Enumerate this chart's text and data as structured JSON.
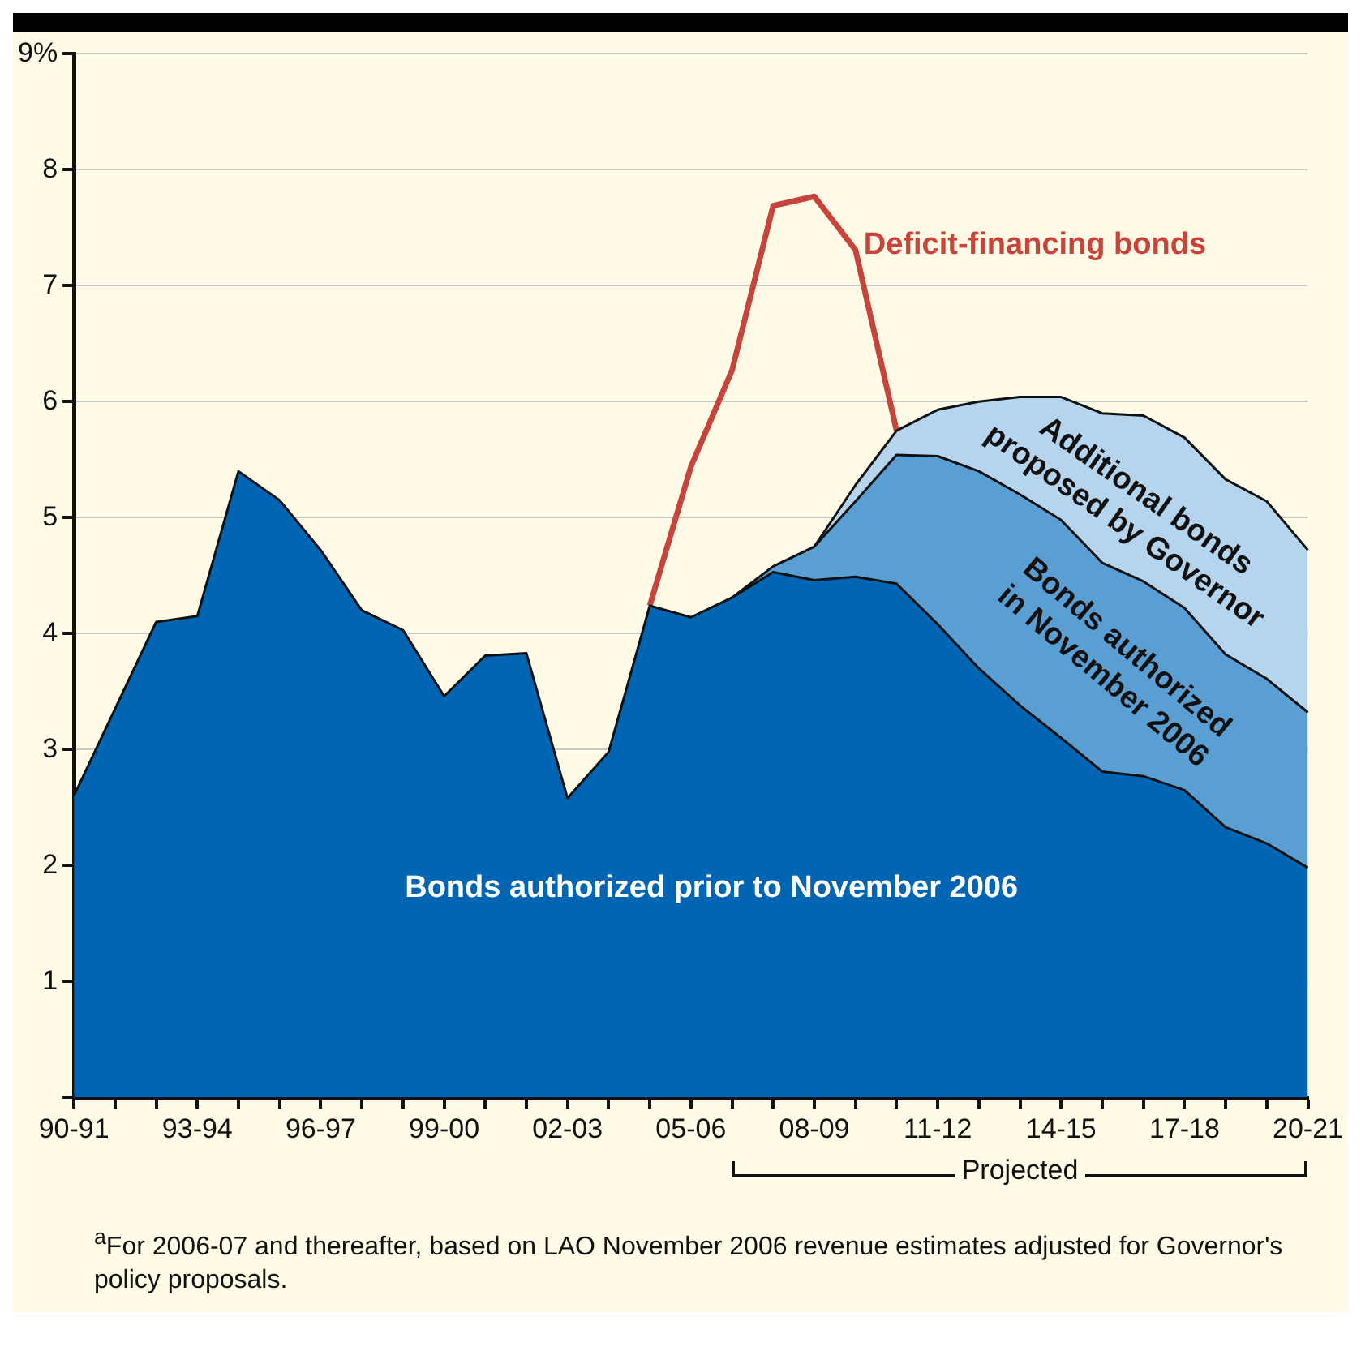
{
  "chart_data": {
    "type": "area",
    "stacked": true,
    "grid": "y",
    "legend": false,
    "marker": "none",
    "categories": [
      "90-91",
      null,
      null,
      "93-94",
      null,
      null,
      "96-97",
      null,
      null,
      "99-00",
      null,
      null,
      "02-03",
      null,
      null,
      "05-06",
      null,
      null,
      "08-09",
      null,
      null,
      "11-12",
      null,
      null,
      "14-15",
      null,
      null,
      "17-18",
      null,
      null,
      "20-21"
    ],
    "ylim": [
      0,
      9
    ],
    "yticks": [
      {
        "value": 0,
        "label": null
      },
      1,
      2,
      3,
      4,
      5,
      6,
      7,
      8,
      {
        "value": 9,
        "label": "9%"
      }
    ],
    "series": [
      {
        "name": "Bonds authorized prior to November 2006",
        "color": "#0066b3",
        "values": [
          2.6,
          3.35,
          4.1,
          4.15,
          5.4,
          5.15,
          4.72,
          4.2,
          4.03,
          3.46,
          3.81,
          3.83,
          2.58,
          2.98,
          4.24,
          4.14,
          4.31,
          4.53,
          4.46,
          4.49,
          4.43,
          4.08,
          3.7,
          3.38,
          3.1,
          2.81,
          2.77,
          2.65,
          2.33,
          2.19,
          1.98
        ]
      },
      {
        "name": "Bonds authorized in November 2006",
        "color": "#5a9fd4",
        "values": [
          null,
          null,
          null,
          null,
          null,
          null,
          null,
          null,
          null,
          null,
          null,
          null,
          null,
          null,
          null,
          null,
          0,
          0.05,
          0.29,
          0.65,
          1.11,
          1.45,
          1.7,
          1.82,
          1.88,
          1.8,
          1.68,
          1.57,
          1.49,
          1.42,
          1.34
        ]
      },
      {
        "name": "Additional bonds proposed by Governor",
        "color": "#b5d5ee",
        "values": [
          null,
          null,
          null,
          null,
          null,
          null,
          null,
          null,
          null,
          null,
          null,
          null,
          null,
          null,
          null,
          null,
          null,
          null,
          0,
          0.14,
          0.21,
          0.4,
          0.6,
          0.84,
          1.06,
          1.29,
          1.43,
          1.47,
          1.51,
          1.53,
          1.4
        ]
      },
      {
        "name": "Deficit-financing bonds",
        "type": "line",
        "color": "#c8443a",
        "values": [
          null,
          null,
          null,
          null,
          null,
          null,
          null,
          null,
          null,
          null,
          null,
          null,
          null,
          null,
          4.24,
          5.44,
          6.27,
          7.69,
          7.77,
          7.31,
          5.75,
          null,
          null,
          null,
          null,
          null,
          null,
          null,
          null,
          null,
          null
        ]
      }
    ],
    "annotations": [
      "Projected",
      "$^{a}$For 2006-07 and thereafter, based on LAO November 2006 revenue estimates adjusted for Governor's policy proposals."
    ]
  }
}
